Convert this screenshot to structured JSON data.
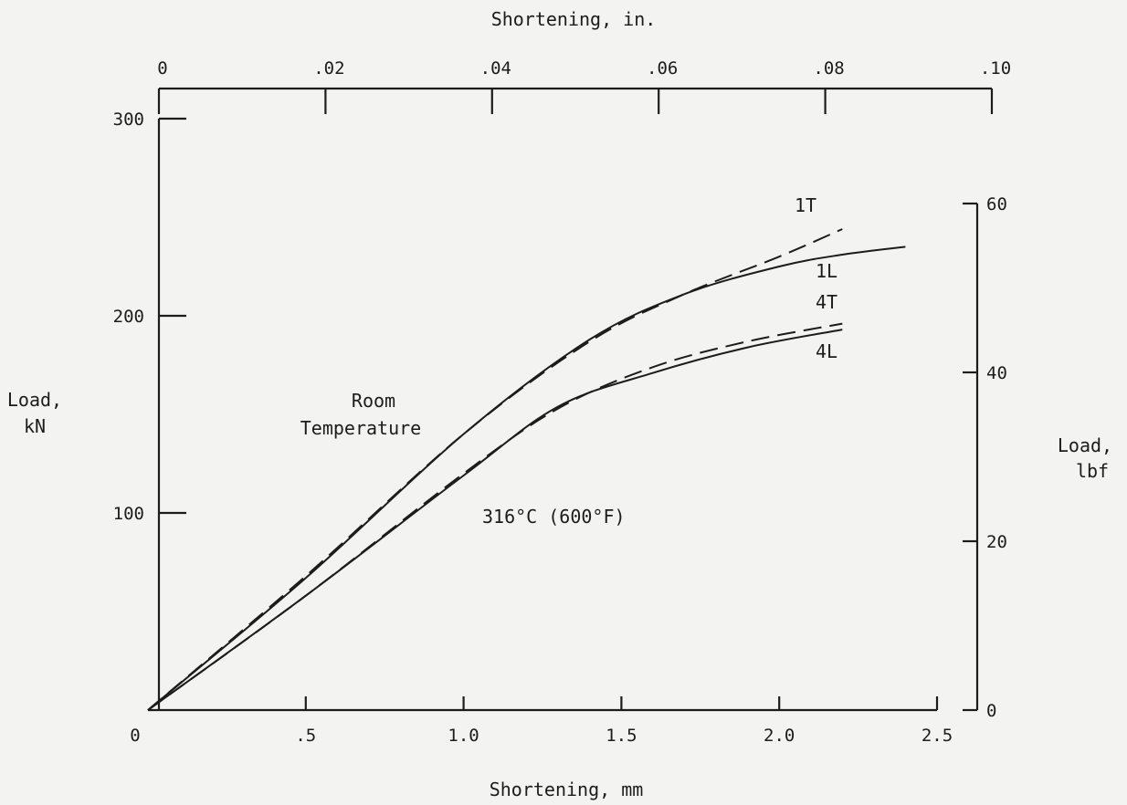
{
  "chart_data": {
    "type": "line",
    "title": "",
    "x_bottom": {
      "label": "Shortening, mm",
      "range": [
        0,
        2.5
      ],
      "ticks": [
        0,
        0.5,
        1.0,
        1.5,
        2.0,
        2.5
      ],
      "tick_labels": [
        "0",
        ".5",
        "1.0",
        "1.5",
        "2.0",
        "2.5"
      ]
    },
    "x_top": {
      "label": "Shortening, in.",
      "range": [
        0,
        0.1
      ],
      "ticks": [
        0,
        0.02,
        0.04,
        0.06,
        0.08,
        0.1
      ],
      "tick_labels": [
        "0",
        ".02",
        ".04",
        ".06",
        ".08",
        ".10"
      ]
    },
    "y_left": {
      "label_lines": [
        "Load,",
        "kN"
      ],
      "range": [
        0,
        300
      ],
      "ticks": [
        100,
        200,
        300
      ],
      "tick_labels": [
        "100",
        "200",
        "300"
      ]
    },
    "y_right": {
      "label_lines": [
        "Load,",
        "lbf"
      ],
      "range": [
        0,
        60
      ],
      "ticks": [
        0,
        20,
        40,
        60
      ],
      "tick_labels": [
        "0",
        "20",
        "40",
        "60"
      ]
    },
    "grid": false,
    "annotations": [
      {
        "id": "room-temp",
        "lines": [
          "Room",
          "Temperature"
        ]
      },
      {
        "id": "elevated-temp",
        "text": "316°C (600°F)"
      }
    ],
    "series": [
      {
        "name": "1T",
        "style": "dashed",
        "x": [
          0,
          0.5,
          1.0,
          1.4,
          1.7,
          2.0,
          2.2
        ],
        "y": [
          0,
          68,
          140,
          187,
          211,
          230,
          244
        ]
      },
      {
        "name": "1L",
        "style": "solid",
        "x": [
          0,
          0.5,
          1.0,
          1.4,
          1.7,
          2.0,
          2.2,
          2.4
        ],
        "y": [
          0,
          67,
          140,
          188,
          211,
          225,
          231,
          235
        ]
      },
      {
        "name": "4T",
        "style": "dashed",
        "x": [
          0,
          0.5,
          1.0,
          1.3,
          1.6,
          1.9,
          2.2
        ],
        "y": [
          0,
          58,
          120,
          153,
          174,
          187,
          196
        ]
      },
      {
        "name": "4L",
        "style": "solid",
        "x": [
          0,
          0.5,
          1.0,
          1.3,
          1.6,
          1.9,
          2.2
        ],
        "y": [
          0,
          58,
          119,
          154,
          171,
          184,
          193
        ]
      }
    ]
  }
}
